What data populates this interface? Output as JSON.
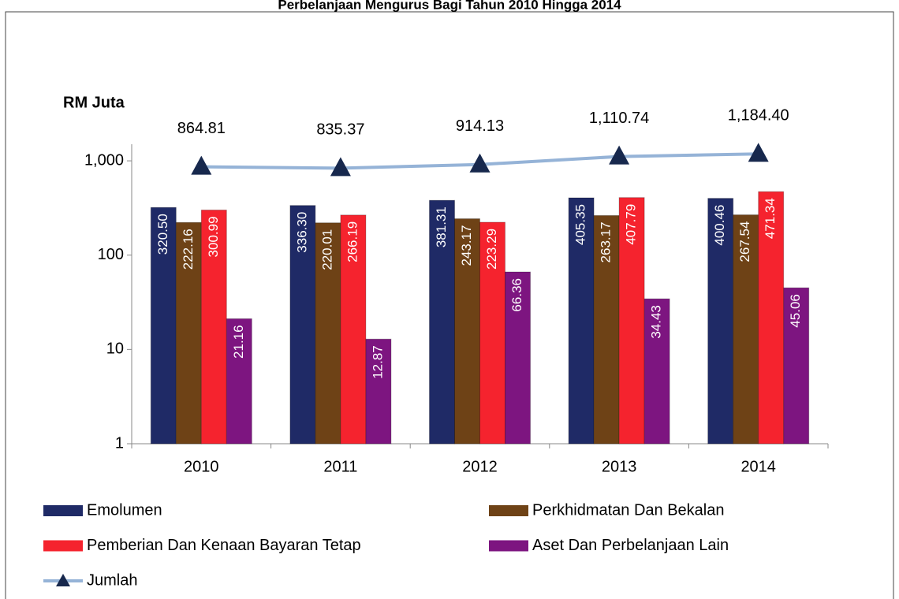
{
  "chart_data": {
    "type": "bar",
    "title": "Perbelanjaan Mengurus Bagi Tahun 2010 Hingga 2014",
    "y_label": "RM Juta",
    "categories": [
      "2010",
      "2011",
      "2012",
      "2013",
      "2014"
    ],
    "log_scale": true,
    "ylim": [
      1,
      1500
    ],
    "yticks": [
      1,
      10,
      100,
      {
        "value": 1000,
        "label": "1,000"
      }
    ],
    "series": [
      {
        "name": "Emolumen",
        "color": "#1f2a66",
        "values": [
          320.5,
          336.3,
          381.31,
          405.35,
          400.46
        ],
        "value_labels": [
          "320.50",
          "336.30",
          "381.31",
          "405.35",
          "400.46"
        ]
      },
      {
        "name": "Perkhidmatan Dan Bekalan",
        "color": "#6e4216",
        "values": [
          222.16,
          220.01,
          243.17,
          263.17,
          267.54
        ],
        "value_labels": [
          "222.16",
          "220.01",
          "243.17",
          "263.17",
          "267.54"
        ]
      },
      {
        "name": "Pemberian Dan Kenaan Bayaran Tetap",
        "color": "#f5232e",
        "values": [
          300.99,
          266.19,
          223.29,
          407.79,
          471.34
        ],
        "value_labels": [
          "300.99",
          "266.19",
          "223.29",
          "407.79",
          "471.34"
        ]
      },
      {
        "name": "Aset Dan Perbelanjaan Lain",
        "color": "#7d1580",
        "values": [
          21.16,
          12.87,
          66.36,
          34.43,
          45.06
        ],
        "value_labels": [
          "21.16",
          "12.87",
          "66.36",
          "34.43",
          "45.06"
        ]
      },
      {
        "name": "Jumlah",
        "type": "line",
        "color": "#95b3d7",
        "marker_color": "#17284d",
        "values": [
          864.81,
          835.37,
          914.13,
          1110.74,
          1184.4
        ],
        "value_labels": [
          "864.81",
          "835.37",
          "914.13",
          "1,110.74",
          "1,184.40"
        ]
      }
    ]
  }
}
